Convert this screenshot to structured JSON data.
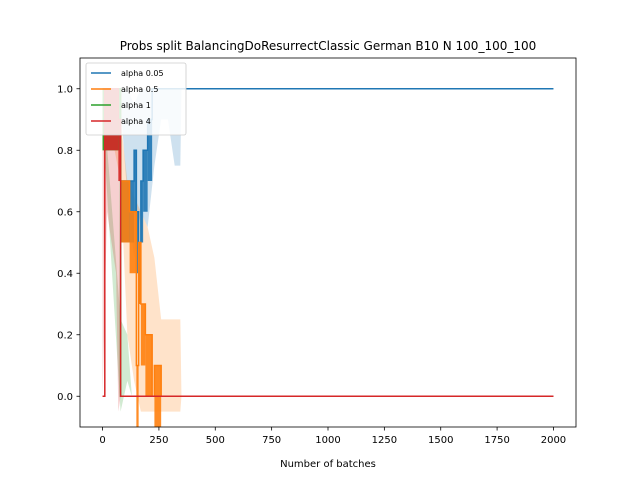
{
  "chart_data": {
    "type": "line",
    "title": "Probs split BalancingDoResurrectClassic German B10 N 100_100_100",
    "xlabel": "Number of batches",
    "ylabel": "",
    "xlim": [
      -100,
      2100
    ],
    "ylim": [
      -0.1,
      1.1
    ],
    "xticks": [
      0,
      250,
      500,
      750,
      1000,
      1250,
      1500,
      1750,
      2000
    ],
    "yticks": [
      0.0,
      0.2,
      0.4,
      0.6,
      0.8,
      1.0
    ],
    "legend_position": "top-left",
    "series": [
      {
        "name": "alpha 0.05",
        "color": "#1f77b4",
        "x": [
          0,
          80,
          80,
          140,
          140,
          150,
          150,
          160,
          160,
          170,
          170,
          180,
          180,
          200,
          200,
          220,
          220,
          2000
        ],
        "y": [
          1.0,
          1.0,
          0.7,
          0.7,
          0.8,
          0.8,
          0.6,
          0.6,
          0.5,
          0.5,
          0.7,
          0.7,
          0.8,
          0.8,
          0.9,
          0.9,
          1.0,
          1.0
        ],
        "band": {
          "x": [
            0,
            80,
            110,
            140,
            170,
            200,
            230,
            260,
            290,
            320,
            345,
            350
          ],
          "lower": [
            1.0,
            0.95,
            0.65,
            0.45,
            0.6,
            0.55,
            0.75,
            0.9,
            0.9,
            0.75,
            0.75,
            1.0
          ],
          "upper": [
            1.0,
            1.0,
            1.0,
            0.95,
            1.0,
            1.0,
            1.0,
            1.0,
            1.0,
            1.0,
            1.0,
            1.0
          ]
        }
      },
      {
        "name": "alpha 0.5",
        "color": "#ff7f0e",
        "x": [
          0,
          80,
          80,
          120,
          120,
          150,
          150,
          160,
          160,
          170,
          170,
          190,
          190,
          220,
          220,
          230,
          230,
          260,
          260,
          340,
          340,
          2000
        ],
        "y": [
          1.0,
          1.0,
          0.7,
          0.7,
          0.6,
          0.6,
          0.1,
          0.1,
          0.5,
          0.5,
          0.3,
          0.3,
          0.2,
          0.2,
          0.0,
          0.0,
          0.1,
          0.1,
          0.0,
          0.0,
          0.0,
          0.0
        ],
        "band": {
          "x": [
            0,
            80,
            110,
            140,
            170,
            200,
            230,
            260,
            290,
            320,
            345,
            350
          ],
          "lower": [
            1.0,
            0.7,
            0.2,
            0.05,
            -0.05,
            -0.05,
            -0.05,
            -0.05,
            -0.05,
            -0.05,
            -0.05,
            0.0
          ],
          "upper": [
            1.0,
            0.9,
            0.7,
            0.65,
            0.6,
            0.55,
            0.45,
            0.25,
            0.25,
            0.25,
            0.25,
            0.0
          ]
        }
      },
      {
        "name": "alpha 1",
        "color": "#2ca02c",
        "x": [
          0,
          80,
          80,
          2000
        ],
        "y": [
          1.0,
          1.0,
          0.0,
          0.0
        ],
        "band": {
          "x": [
            0,
            80,
            110,
            130
          ],
          "lower": [
            0.9,
            -0.05,
            0.05,
            0.0
          ],
          "upper": [
            1.0,
            0.25,
            0.2,
            0.0
          ]
        }
      },
      {
        "name": "alpha 4",
        "color": "#d62728",
        "x": [
          0,
          10,
          10,
          70,
          70,
          80,
          80,
          2000
        ],
        "y": [
          0.0,
          0.0,
          1.0,
          1.0,
          0.9,
          0.9,
          0.0,
          0.0
        ],
        "band": {
          "x": [
            0,
            20,
            40,
            60,
            70,
            80
          ],
          "lower": [
            0.0,
            0.6,
            0.5,
            0.4,
            -0.05,
            0.0
          ],
          "upper": [
            1.0,
            1.0,
            1.0,
            1.0,
            1.0,
            0.0
          ]
        }
      }
    ]
  }
}
